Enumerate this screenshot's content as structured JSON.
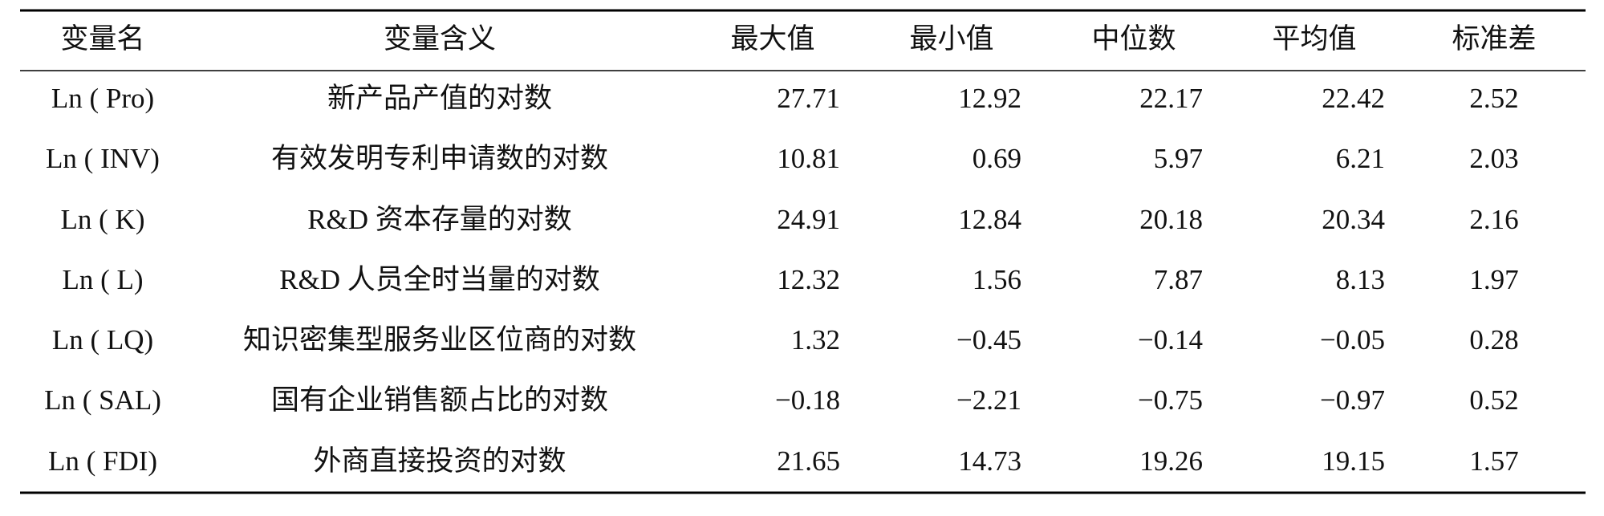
{
  "table": {
    "header": [
      "变量名",
      "变量含义",
      "最大值",
      "最小值",
      "中位数",
      "平均值",
      "标准差"
    ],
    "rows": [
      [
        "Ln ( Pro)",
        "新产品产值的对数",
        "27.71",
        "12.92",
        "22.17",
        "22.42",
        "2.52"
      ],
      [
        "Ln ( INV)",
        "有效发明专利申请数的对数",
        "10.81",
        "0.69",
        "5.97",
        "6.21",
        "2.03"
      ],
      [
        "Ln ( K)",
        "R&D 资本存量的对数",
        "24.91",
        "12.84",
        "20.18",
        "20.34",
        "2.16"
      ],
      [
        "Ln ( L)",
        "R&D 人员全时当量的对数",
        "12.32",
        "1.56",
        "7.87",
        "8.13",
        "1.97"
      ],
      [
        "Ln ( LQ)",
        "知识密集型服务业区位商的对数",
        "1.32",
        "−0.45",
        "−0.14",
        "−0.05",
        "0.28"
      ],
      [
        "Ln ( SAL)",
        "国有企业销售额占比的对数",
        "−0.18",
        "−2.21",
        "−0.75",
        "−0.97",
        "0.52"
      ],
      [
        "Ln ( FDI)",
        "外商直接投资的对数",
        "21.65",
        "14.73",
        "19.26",
        "19.15",
        "1.57"
      ]
    ]
  }
}
